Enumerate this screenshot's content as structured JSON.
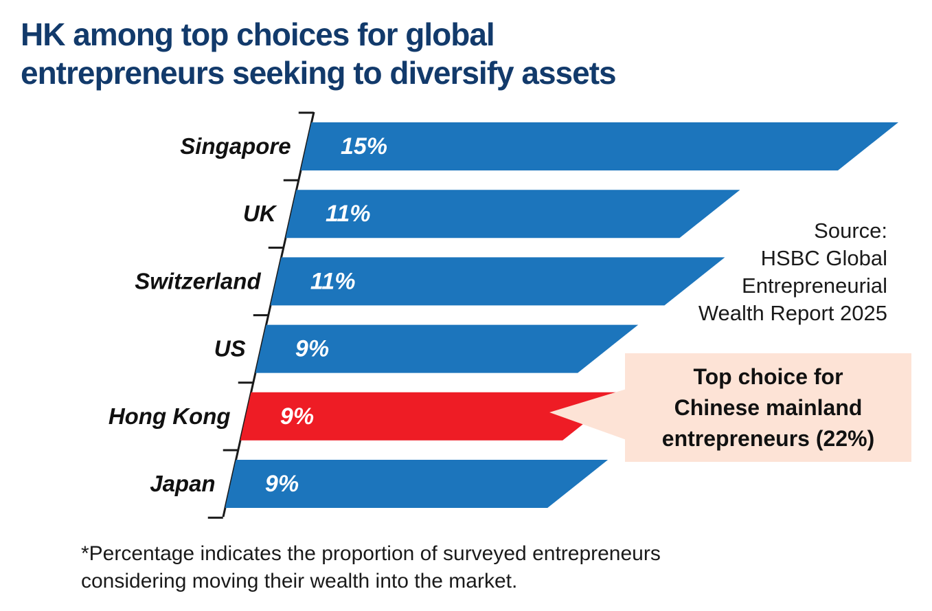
{
  "title_lines": [
    "HK among top choices for global",
    "entrepreneurs seeking to diversify assets"
  ],
  "source_lines": [
    "Source:",
    "HSBC Global",
    "Entrepreneurial",
    "Wealth Report 2025"
  ],
  "callout_lines": [
    "Top choice for",
    "Chinese mainland",
    "entrepreneurs (22%)"
  ],
  "note_lines": [
    "*Percentage indicates the proportion of surveyed entrepreneurs",
    "considering moving their wealth into the market."
  ],
  "colors": {
    "bar_default": "#1c75bc",
    "bar_highlight": "#ee1c25",
    "title": "#123a6b",
    "callout_bg": "#fde3d6"
  },
  "chart_data": {
    "type": "bar",
    "orientation": "horizontal",
    "categories": [
      "Singapore",
      "UK",
      "Switzerland",
      "US",
      "Hong Kong",
      "Japan"
    ],
    "values": [
      15,
      11,
      11,
      9,
      9,
      9
    ],
    "value_labels": [
      "15%",
      "11%",
      "11%",
      "9%",
      "9%",
      "9%"
    ],
    "highlight": "Hong Kong",
    "unit": "%",
    "grid": false,
    "legend": "none"
  }
}
